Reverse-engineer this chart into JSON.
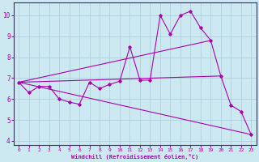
{
  "xlabel": "Windchill (Refroidissement éolien,°C)",
  "background_color": "#cce8f0",
  "grid_color": "#aaccdd",
  "line_color": "#aa00aa",
  "spine_color": "#7700aa",
  "xlim": [
    -0.5,
    23.5
  ],
  "ylim": [
    3.8,
    10.6
  ],
  "xticks": [
    0,
    1,
    2,
    3,
    4,
    5,
    6,
    7,
    8,
    9,
    10,
    11,
    12,
    13,
    14,
    15,
    16,
    17,
    18,
    19,
    20,
    21,
    22,
    23
  ],
  "yticks": [
    4,
    5,
    6,
    7,
    8,
    9,
    10
  ],
  "main_series_x": [
    0,
    1,
    2,
    3,
    4,
    5,
    6,
    7,
    8,
    9,
    10,
    11,
    12,
    13,
    14,
    15,
    16,
    17,
    18,
    19,
    20,
    21,
    22,
    23
  ],
  "main_series_y": [
    6.8,
    6.3,
    6.6,
    6.6,
    6.0,
    5.85,
    5.75,
    6.8,
    6.5,
    6.7,
    6.85,
    8.5,
    6.9,
    6.9,
    10.0,
    9.1,
    10.0,
    10.2,
    9.4,
    8.8,
    7.1,
    5.7,
    5.4,
    4.3
  ],
  "trend_lines": [
    {
      "x": [
        0,
        19
      ],
      "y": [
        6.8,
        8.8
      ]
    },
    {
      "x": [
        0,
        20
      ],
      "y": [
        6.8,
        7.1
      ]
    },
    {
      "x": [
        0,
        23
      ],
      "y": [
        6.8,
        4.3
      ]
    }
  ]
}
